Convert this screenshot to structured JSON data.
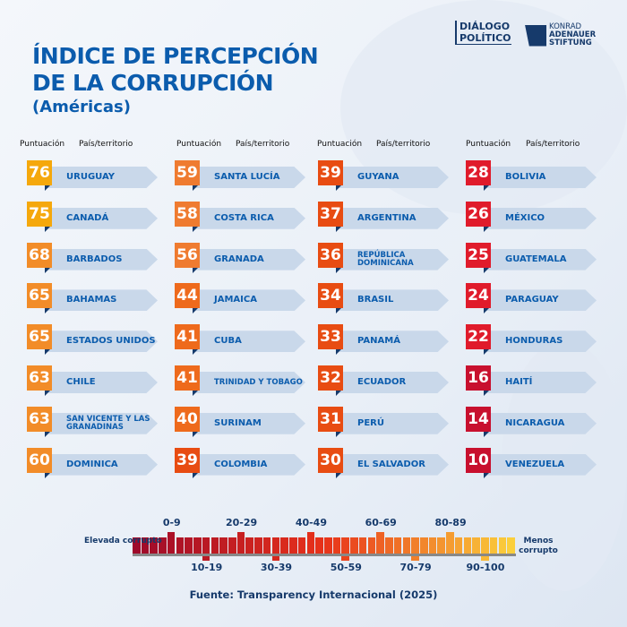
{
  "title_line1": "ÍNDICE DE PERCEPCIÓN",
  "title_line2": "DE LA CORRUPCIÓN",
  "subtitle": "(Américas)",
  "logo_dialogo": "DIÁLOGO POLÍTICO",
  "logo_kas": [
    "KONRAD",
    "ADENAUER",
    "STIFTUNG"
  ],
  "header_score": "Puntuación",
  "header_country": "País/territorio",
  "columns": [
    [
      {
        "score": "76",
        "name": "URUGUAY",
        "color": "#f5a80c"
      },
      {
        "score": "75",
        "name": "CANADÁ",
        "color": "#f5a80c"
      },
      {
        "score": "68",
        "name": "BARBADOS",
        "color": "#f28c28"
      },
      {
        "score": "65",
        "name": "BAHAMAS",
        "color": "#f28c28"
      },
      {
        "score": "65",
        "name": "ESTADOS UNIDOS",
        "color": "#f28c28"
      },
      {
        "score": "63",
        "name": "CHILE",
        "color": "#f28c28"
      },
      {
        "score": "63",
        "name": "SAN VICENTE Y LAS GRANADINAS",
        "color": "#f28c28"
      },
      {
        "score": "60",
        "name": "DOMINICA",
        "color": "#f28c28"
      }
    ],
    [
      {
        "score": "59",
        "name": "SANTA LUCÍA",
        "color": "#ef7b30"
      },
      {
        "score": "58",
        "name": "COSTA RICA",
        "color": "#ef7b30"
      },
      {
        "score": "56",
        "name": "GRANADA",
        "color": "#ef7b30"
      },
      {
        "score": "44",
        "name": "JAMAICA",
        "color": "#ee6a1c"
      },
      {
        "score": "41",
        "name": "CUBA",
        "color": "#ee6a1c"
      },
      {
        "score": "41",
        "name": "TRINIDAD Y TOBAGO",
        "color": "#ee6a1c"
      },
      {
        "score": "40",
        "name": "SURINAM",
        "color": "#ee6a1c"
      },
      {
        "score": "39",
        "name": "COLOMBIA",
        "color": "#e84c12"
      }
    ],
    [
      {
        "score": "39",
        "name": "GUYANA",
        "color": "#e84c12"
      },
      {
        "score": "37",
        "name": "ARGENTINA",
        "color": "#e84c12"
      },
      {
        "score": "36",
        "name": "REPÚBLICA DOMINICANA",
        "color": "#e84c12"
      },
      {
        "score": "34",
        "name": "BRASIL",
        "color": "#e84c12"
      },
      {
        "score": "33",
        "name": "PANAMÁ",
        "color": "#e84c12"
      },
      {
        "score": "32",
        "name": "ECUADOR",
        "color": "#e84c12"
      },
      {
        "score": "31",
        "name": "PERÚ",
        "color": "#e84c12"
      },
      {
        "score": "30",
        "name": "EL SALVADOR",
        "color": "#e84c12"
      }
    ],
    [
      {
        "score": "28",
        "name": "BOLIVIA",
        "color": "#e01b2b"
      },
      {
        "score": "26",
        "name": "MÉXICO",
        "color": "#e01b2b"
      },
      {
        "score": "25",
        "name": "GUATEMALA",
        "color": "#e01b2b"
      },
      {
        "score": "24",
        "name": "PARAGUAY",
        "color": "#e01b2b"
      },
      {
        "score": "22",
        "name": "HONDURAS",
        "color": "#e01b2b"
      },
      {
        "score": "16",
        "name": "HAITÍ",
        "color": "#c8102e"
      },
      {
        "score": "14",
        "name": "NICARAGUA",
        "color": "#c8102e"
      },
      {
        "score": "10",
        "name": "VENEZUELA",
        "color": "#c8102e"
      }
    ]
  ],
  "scale": {
    "left_label": "Elevada corrupto",
    "right_label": "Menos corrupto",
    "ranges": [
      "0-9",
      "10-19",
      "20-29",
      "30-39",
      "40-49",
      "50-59",
      "60-69",
      "70-79",
      "80-89",
      "90-100"
    ],
    "color_low": "#9e0a2a",
    "color_mid": "#e8321a",
    "color_high": "#fbcf3c"
  },
  "source": "Fuente: Transparency Internacional (2025)"
}
